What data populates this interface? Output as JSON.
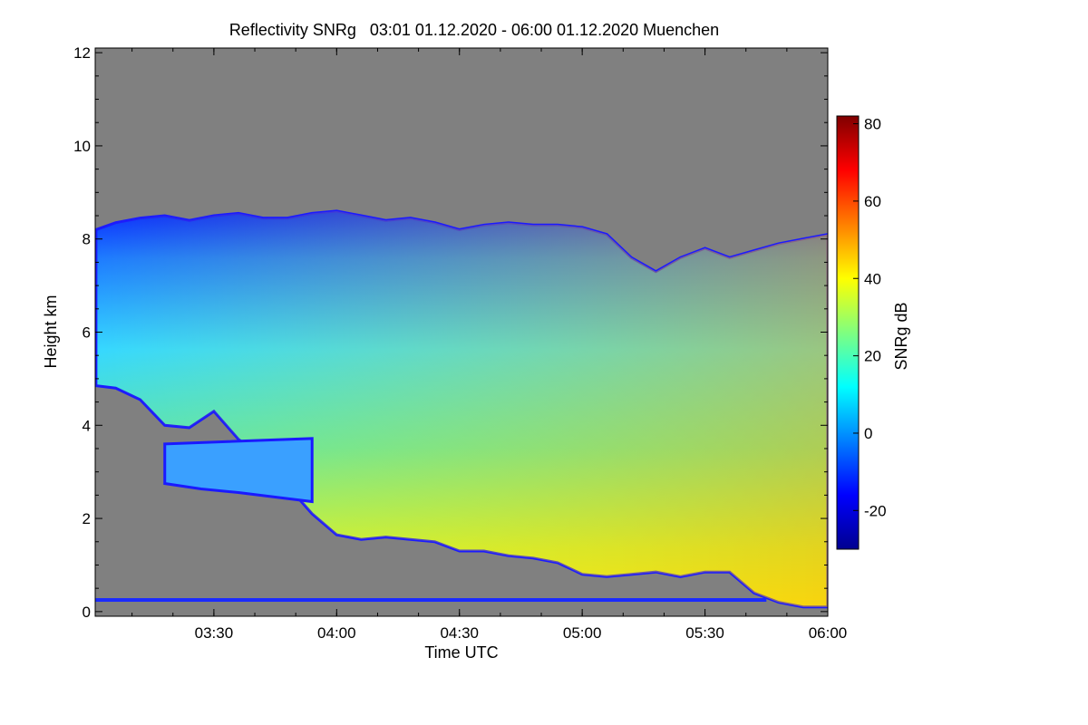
{
  "chart_data": {
    "type": "heatmap",
    "title": "Reflectivity SNRg   03:01 01.12.2020 - 06:00 01.12.2020 Muenchen",
    "xlabel": "Time UTC",
    "ylabel": "Height km",
    "x_range_hours": [
      3.0167,
      6.0
    ],
    "x_ticks": [
      {
        "value": 3.5,
        "label": "03:30"
      },
      {
        "value": 4.0,
        "label": "04:00"
      },
      {
        "value": 4.5,
        "label": "04:30"
      },
      {
        "value": 5.0,
        "label": "05:00"
      },
      {
        "value": 5.5,
        "label": "05:30"
      },
      {
        "value": 6.0,
        "label": "06:00"
      }
    ],
    "ylim": [
      -0.1,
      12.1
    ],
    "y_ticks": [
      {
        "value": 0,
        "label": "0"
      },
      {
        "value": 2,
        "label": "2"
      },
      {
        "value": 4,
        "label": "4"
      },
      {
        "value": 6,
        "label": "6"
      },
      {
        "value": 8,
        "label": "8"
      },
      {
        "value": 10,
        "label": "10"
      },
      {
        "value": 12,
        "label": "12"
      }
    ],
    "colorbar": {
      "label": "SNRg dB",
      "range": [
        -30,
        82
      ],
      "ticks": [
        {
          "value": -20,
          "label": "-20"
        },
        {
          "value": 0,
          "label": "0"
        },
        {
          "value": 20,
          "label": "20"
        },
        {
          "value": 40,
          "label": "40"
        },
        {
          "value": 60,
          "label": "60"
        },
        {
          "value": 80,
          "label": "80"
        }
      ]
    },
    "missing_color": "#808080",
    "cloud": {
      "top_km": [
        [
          3.02,
          8.2
        ],
        [
          3.1,
          8.35
        ],
        [
          3.2,
          8.45
        ],
        [
          3.3,
          8.5
        ],
        [
          3.4,
          8.4
        ],
        [
          3.5,
          8.5
        ],
        [
          3.6,
          8.55
        ],
        [
          3.7,
          8.45
        ],
        [
          3.8,
          8.45
        ],
        [
          3.9,
          8.55
        ],
        [
          4.0,
          8.6
        ],
        [
          4.1,
          8.5
        ],
        [
          4.2,
          8.4
        ],
        [
          4.3,
          8.45
        ],
        [
          4.4,
          8.35
        ],
        [
          4.5,
          8.2
        ],
        [
          4.6,
          8.3
        ],
        [
          4.7,
          8.35
        ],
        [
          4.8,
          8.3
        ],
        [
          4.9,
          8.3
        ],
        [
          5.0,
          8.25
        ],
        [
          5.1,
          8.1
        ],
        [
          5.2,
          7.6
        ],
        [
          5.3,
          7.3
        ],
        [
          5.4,
          7.6
        ],
        [
          5.5,
          7.8
        ],
        [
          5.6,
          7.6
        ],
        [
          5.7,
          7.75
        ],
        [
          5.8,
          7.9
        ],
        [
          5.9,
          8.0
        ],
        [
          6.0,
          8.1
        ]
      ],
      "base_km": [
        [
          3.02,
          4.85
        ],
        [
          3.1,
          4.8
        ],
        [
          3.2,
          4.55
        ],
        [
          3.3,
          4.0
        ],
        [
          3.4,
          3.95
        ],
        [
          3.5,
          4.3
        ],
        [
          3.6,
          3.7
        ],
        [
          3.7,
          3.3
        ],
        [
          3.8,
          2.7
        ],
        [
          3.9,
          2.1
        ],
        [
          4.0,
          1.65
        ],
        [
          4.1,
          1.55
        ],
        [
          4.2,
          1.6
        ],
        [
          4.3,
          1.55
        ],
        [
          4.4,
          1.5
        ],
        [
          4.5,
          1.3
        ],
        [
          4.6,
          1.3
        ],
        [
          4.7,
          1.2
        ],
        [
          4.8,
          1.15
        ],
        [
          4.9,
          1.05
        ],
        [
          5.0,
          0.8
        ],
        [
          5.1,
          0.75
        ],
        [
          5.2,
          0.8
        ],
        [
          5.3,
          0.85
        ],
        [
          5.4,
          0.75
        ],
        [
          5.5,
          0.85
        ],
        [
          5.6,
          0.85
        ],
        [
          5.7,
          0.4
        ],
        [
          5.8,
          0.2
        ],
        [
          5.9,
          0.1
        ],
        [
          6.0,
          0.1
        ]
      ],
      "lower_layer": {
        "x_range": [
          3.3,
          3.9
        ],
        "base_km": 2.75,
        "top_km": 3.6
      },
      "ground_clutter_km": 0.25
    }
  }
}
